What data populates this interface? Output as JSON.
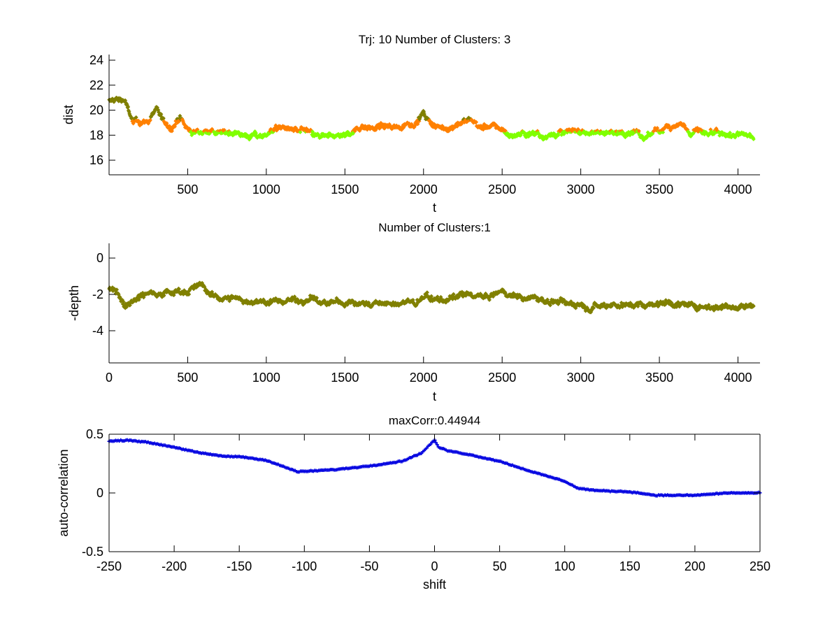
{
  "colors": {
    "olive": "#808000",
    "orange": "#ff8000",
    "lime": "#80ff00",
    "blue": "#0000e0",
    "axis": "#000000"
  },
  "chart_data": [
    {
      "type": "scatter",
      "title": "Trj: 10 Number of Clusters: 3",
      "xlabel": "t",
      "ylabel": "dist",
      "xlim": [
        0,
        4140
      ],
      "ylim": [
        14.83,
        24.45
      ],
      "xticks": [
        "500",
        "1000",
        "1500",
        "2000",
        "2500",
        "3000",
        "3500",
        "4000"
      ],
      "yticks": [
        "16",
        "18",
        "20",
        "22",
        "24"
      ],
      "box": false,
      "series_step": 50,
      "series_mean": [
        20.7,
        20.9,
        20.8,
        19.0,
        19.1,
        19.0,
        20.3,
        18.9,
        18.6,
        19.3,
        18.4,
        18.2,
        18.3,
        18.4,
        18.1,
        18.2,
        18.3,
        18.0,
        17.9,
        17.9,
        18.1,
        18.5,
        18.6,
        18.5,
        18.3,
        18.4,
        18.0,
        17.8,
        17.9,
        18.0,
        18.0,
        18.3,
        18.7,
        18.7,
        18.6,
        18.7,
        18.6,
        18.7,
        18.9,
        19.0,
        19.7,
        18.8,
        18.6,
        18.5,
        18.8,
        19.0,
        19.3,
        18.7,
        18.6,
        18.7,
        18.5,
        17.9,
        18.1,
        18.1,
        18.2,
        18.0,
        18.0,
        18.1,
        18.2,
        18.4,
        18.3,
        18.2,
        18.2,
        18.3,
        18.1,
        18.2,
        18.3,
        18.2,
        17.7,
        18.2,
        18.3,
        18.8,
        18.8,
        18.9,
        18.0,
        18.4,
        18.0,
        18.1,
        18.0,
        18.0,
        18.0,
        18.0,
        17.9
      ],
      "noise": 0.35,
      "clusters": [
        {
          "name": "cluster-1",
          "color": "olive",
          "min": 19.25
        },
        {
          "name": "cluster-2",
          "color": "orange",
          "min": 18.3
        },
        {
          "name": "cluster-3",
          "color": "lime",
          "min": -100
        }
      ]
    },
    {
      "type": "scatter",
      "title": "Number of Clusters:1",
      "xlabel": "t",
      "ylabel": "-depth",
      "xlim": [
        0,
        4140
      ],
      "ylim": [
        -5.77,
        0.81
      ],
      "xticks": [
        "0",
        "500",
        "1000",
        "1500",
        "2000",
        "2500",
        "3000",
        "3500",
        "4000"
      ],
      "yticks": [
        "0",
        "-2",
        "-4"
      ],
      "box": false,
      "series_step": 50,
      "series_mean": [
        -1.7,
        -1.8,
        -2.6,
        -2.3,
        -2.1,
        -1.9,
        -1.9,
        -1.9,
        -1.9,
        -1.8,
        -1.8,
        -1.6,
        -1.5,
        -2.1,
        -2.2,
        -2.2,
        -2.2,
        -2.3,
        -2.4,
        -2.4,
        -2.4,
        -2.4,
        -2.4,
        -2.3,
        -2.3,
        -2.3,
        -2.2,
        -2.5,
        -2.5,
        -2.4,
        -2.5,
        -2.4,
        -2.5,
        -2.5,
        -2.5,
        -2.5,
        -2.6,
        -2.5,
        -2.4,
        -2.5,
        -2.2,
        -2.2,
        -2.3,
        -2.3,
        -2.2,
        -2.1,
        -2.0,
        -2.1,
        -2.2,
        -2.0,
        -1.9,
        -2.0,
        -2.1,
        -2.2,
        -2.2,
        -2.3,
        -2.4,
        -2.4,
        -2.5,
        -2.5,
        -2.5,
        -2.7,
        -2.6,
        -2.6,
        -2.5,
        -2.6,
        -2.6,
        -2.5,
        -2.6,
        -2.5,
        -2.5,
        -2.4,
        -2.5,
        -2.6,
        -2.6,
        -2.7,
        -2.6,
        -2.7,
        -2.7,
        -2.6,
        -2.7,
        -2.6,
        -2.7
      ],
      "noise": 0.25,
      "clusters": [
        {
          "name": "cluster-1",
          "color": "olive",
          "min": -100
        }
      ]
    },
    {
      "type": "line",
      "title": "maxCorr:0.44944",
      "xlabel": "shift",
      "ylabel": "auto-correlation",
      "xlim": [
        -250,
        250
      ],
      "ylim": [
        -0.5,
        0.5
      ],
      "xticks": [
        "-250",
        "-200",
        "-150",
        "-100",
        "-50",
        "0",
        "50",
        "100",
        "150",
        "200",
        "250"
      ],
      "yticks": [
        "0.5",
        "0",
        "-0.5"
      ],
      "box": true,
      "x": [
        -250,
        -235,
        -220,
        -200,
        -180,
        -160,
        -150,
        -130,
        -115,
        -105,
        -90,
        -75,
        -50,
        -25,
        -10,
        0,
        3,
        10,
        25,
        50,
        75,
        100,
        110,
        125,
        150,
        170,
        200,
        225,
        250
      ],
      "y": [
        0.44,
        0.45,
        0.43,
        0.39,
        0.34,
        0.31,
        0.31,
        0.28,
        0.22,
        0.18,
        0.19,
        0.2,
        0.23,
        0.27,
        0.34,
        0.45,
        0.39,
        0.36,
        0.33,
        0.27,
        0.18,
        0.1,
        0.04,
        0.02,
        0.01,
        -0.02,
        -0.02,
        0.0,
        0.0
      ],
      "maxCorr": 0.44944
    }
  ]
}
